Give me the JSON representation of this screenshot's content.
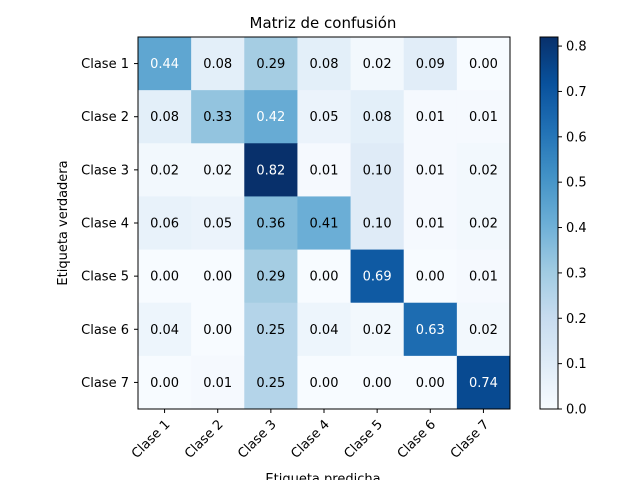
{
  "chart_data": {
    "type": "heatmap",
    "title": "Matriz de confusión",
    "xlabel": "Etiqueta predicha",
    "ylabel": "Etiqueta verdadera",
    "x_categories": [
      "Clase 1",
      "Clase 2",
      "Clase 3",
      "Clase 4",
      "Clase 5",
      "Clase 6",
      "Clase 7"
    ],
    "y_categories": [
      "Clase 1",
      "Clase 2",
      "Clase 3",
      "Clase 4",
      "Clase 5",
      "Clase 6",
      "Clase 7"
    ],
    "values": [
      [
        0.44,
        0.08,
        0.29,
        0.08,
        0.02,
        0.09,
        0.0
      ],
      [
        0.08,
        0.33,
        0.42,
        0.05,
        0.08,
        0.01,
        0.01
      ],
      [
        0.02,
        0.02,
        0.82,
        0.01,
        0.1,
        0.01,
        0.02
      ],
      [
        0.06,
        0.05,
        0.36,
        0.41,
        0.1,
        0.01,
        0.02
      ],
      [
        0.0,
        0.0,
        0.29,
        0.0,
        0.69,
        0.0,
        0.01
      ],
      [
        0.04,
        0.0,
        0.25,
        0.04,
        0.02,
        0.63,
        0.02
      ],
      [
        0.0,
        0.01,
        0.25,
        0.0,
        0.0,
        0.0,
        0.74
      ]
    ],
    "value_labels": [
      [
        "0.44",
        "0.08",
        "0.29",
        "0.08",
        "0.02",
        "0.09",
        "0.00"
      ],
      [
        "0.08",
        "0.33",
        "0.42",
        "0.05",
        "0.08",
        "0.01",
        "0.01"
      ],
      [
        "0.02",
        "0.02",
        "0.82",
        "0.01",
        "0.10",
        "0.01",
        "0.02"
      ],
      [
        "0.06",
        "0.05",
        "0.36",
        "0.41",
        "0.10",
        "0.01",
        "0.02"
      ],
      [
        "0.00",
        "0.00",
        "0.29",
        "0.00",
        "0.69",
        "0.00",
        "0.01"
      ],
      [
        "0.04",
        "0.00",
        "0.25",
        "0.04",
        "0.02",
        "0.63",
        "0.02"
      ],
      [
        "0.00",
        "0.01",
        "0.25",
        "0.00",
        "0.00",
        "0.00",
        "0.74"
      ]
    ],
    "colormap": "Blues",
    "vmin": 0.0,
    "vmax": 0.82,
    "colorbar_ticks": [
      0.0,
      0.1,
      0.2,
      0.3,
      0.4,
      0.5,
      0.6,
      0.7,
      0.8
    ],
    "colorbar_tick_labels": [
      "0.0",
      "0.1",
      "0.2",
      "0.3",
      "0.4",
      "0.5",
      "0.6",
      "0.7",
      "0.8"
    ],
    "grid": false,
    "colors": {
      "text_dark": "#000000",
      "text_light": "#ffffff"
    }
  }
}
